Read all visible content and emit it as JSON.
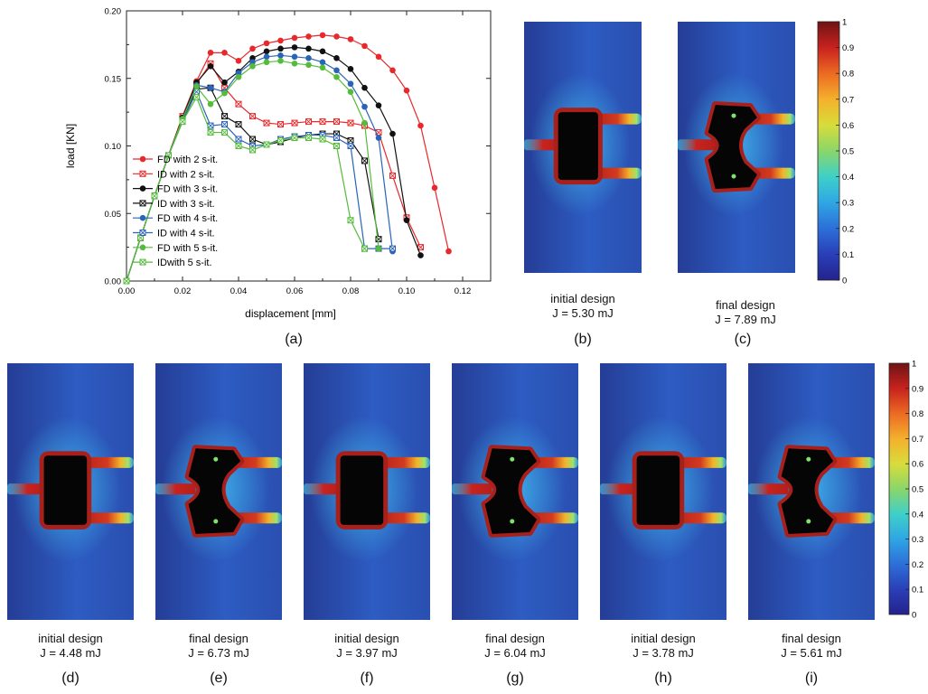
{
  "chart_data": {
    "type": "line",
    "xlabel": "displacement [mm]",
    "ylabel": "load [KN]",
    "xlim": [
      0.0,
      0.13
    ],
    "ylim": [
      0.0,
      0.2
    ],
    "xticks": [
      "0.00",
      "0.02",
      "0.04",
      "0.06",
      "0.08",
      "0.10",
      "0.12"
    ],
    "yticks": [
      "0.00",
      "0.05",
      "0.10",
      "0.15",
      "0.20"
    ],
    "legend_position": "lower-left",
    "series": [
      {
        "name": "FD with 2 s-it.",
        "color": "#e8282a",
        "marker": "dot",
        "x": [
          0,
          0.005,
          0.01,
          0.015,
          0.02,
          0.025,
          0.03,
          0.035,
          0.04,
          0.045,
          0.05,
          0.055,
          0.06,
          0.065,
          0.07,
          0.075,
          0.08,
          0.085,
          0.09,
          0.095,
          0.1,
          0.105,
          0.11,
          0.115
        ],
        "y": [
          0,
          0.032,
          0.063,
          0.093,
          0.122,
          0.148,
          0.169,
          0.169,
          0.163,
          0.172,
          0.176,
          0.178,
          0.18,
          0.181,
          0.182,
          0.181,
          0.179,
          0.174,
          0.166,
          0.156,
          0.141,
          0.115,
          0.069,
          0.022
        ]
      },
      {
        "name": "ID with 2 s-it.",
        "color": "#e8282a",
        "marker": "xbox",
        "x": [
          0,
          0.005,
          0.01,
          0.015,
          0.02,
          0.025,
          0.03,
          0.035,
          0.04,
          0.045,
          0.05,
          0.055,
          0.06,
          0.065,
          0.07,
          0.075,
          0.08,
          0.085,
          0.09,
          0.095,
          0.1,
          0.105
        ],
        "y": [
          0,
          0.032,
          0.063,
          0.093,
          0.122,
          0.146,
          0.161,
          0.143,
          0.131,
          0.122,
          0.117,
          0.116,
          0.117,
          0.118,
          0.118,
          0.118,
          0.117,
          0.115,
          0.11,
          0.078,
          0.047,
          0.025
        ]
      },
      {
        "name": "FD with 3 s-it.",
        "color": "#111111",
        "marker": "dot",
        "x": [
          0,
          0.005,
          0.01,
          0.015,
          0.02,
          0.025,
          0.03,
          0.035,
          0.04,
          0.045,
          0.05,
          0.055,
          0.06,
          0.065,
          0.07,
          0.075,
          0.08,
          0.085,
          0.09,
          0.095,
          0.1,
          0.105
        ],
        "y": [
          0,
          0.032,
          0.063,
          0.093,
          0.121,
          0.147,
          0.159,
          0.147,
          0.155,
          0.165,
          0.17,
          0.172,
          0.173,
          0.172,
          0.17,
          0.165,
          0.157,
          0.143,
          0.13,
          0.109,
          0.045,
          0.019
        ]
      },
      {
        "name": "ID with 3 s-it.",
        "color": "#111111",
        "marker": "xbox",
        "x": [
          0,
          0.005,
          0.01,
          0.015,
          0.02,
          0.025,
          0.03,
          0.035,
          0.04,
          0.045,
          0.05,
          0.055,
          0.06,
          0.065,
          0.07,
          0.075,
          0.08,
          0.085,
          0.09
        ],
        "y": [
          0,
          0.032,
          0.063,
          0.093,
          0.12,
          0.142,
          0.143,
          0.122,
          0.116,
          0.105,
          0.101,
          0.103,
          0.106,
          0.108,
          0.109,
          0.109,
          0.104,
          0.089,
          0.031
        ]
      },
      {
        "name": "FD with 4 s-it.",
        "color": "#2a64b8",
        "marker": "dot",
        "x": [
          0,
          0.005,
          0.01,
          0.015,
          0.02,
          0.025,
          0.03,
          0.035,
          0.04,
          0.045,
          0.05,
          0.055,
          0.06,
          0.065,
          0.07,
          0.075,
          0.08,
          0.085,
          0.09,
          0.095
        ],
        "y": [
          0,
          0.032,
          0.063,
          0.093,
          0.12,
          0.145,
          0.143,
          0.14,
          0.154,
          0.162,
          0.166,
          0.167,
          0.166,
          0.165,
          0.162,
          0.156,
          0.146,
          0.129,
          0.106,
          0.022
        ]
      },
      {
        "name": "ID with 4 s-it.",
        "color": "#2a64b8",
        "marker": "xbox",
        "x": [
          0,
          0.005,
          0.01,
          0.015,
          0.02,
          0.025,
          0.03,
          0.035,
          0.04,
          0.045,
          0.05,
          0.055,
          0.06,
          0.065,
          0.07,
          0.075,
          0.08,
          0.085,
          0.09,
          0.095
        ],
        "y": [
          0,
          0.032,
          0.063,
          0.093,
          0.118,
          0.14,
          0.115,
          0.116,
          0.105,
          0.1,
          0.101,
          0.105,
          0.107,
          0.108,
          0.108,
          0.106,
          0.1,
          0.024,
          0.024,
          0.024
        ]
      },
      {
        "name": "FD with 5 s-it.",
        "color": "#55bb3a",
        "marker": "dot",
        "x": [
          0,
          0.005,
          0.01,
          0.015,
          0.02,
          0.025,
          0.03,
          0.035,
          0.04,
          0.045,
          0.05,
          0.055,
          0.06,
          0.065,
          0.07,
          0.075,
          0.08,
          0.085,
          0.09
        ],
        "y": [
          0,
          0.032,
          0.063,
          0.093,
          0.12,
          0.144,
          0.131,
          0.139,
          0.151,
          0.159,
          0.162,
          0.163,
          0.161,
          0.16,
          0.158,
          0.151,
          0.14,
          0.117,
          0.024
        ]
      },
      {
        "name": "IDwith 5 s-it.",
        "color": "#55bb3a",
        "marker": "xbox",
        "x": [
          0,
          0.005,
          0.01,
          0.015,
          0.02,
          0.025,
          0.03,
          0.035,
          0.04,
          0.045,
          0.05,
          0.055,
          0.06,
          0.065,
          0.07,
          0.075,
          0.08,
          0.085
        ],
        "y": [
          0,
          0.032,
          0.063,
          0.093,
          0.118,
          0.136,
          0.11,
          0.11,
          0.1,
          0.097,
          0.101,
          0.104,
          0.106,
          0.106,
          0.105,
          0.1,
          0.045,
          0.024
        ]
      }
    ]
  },
  "labels": {
    "a": "(a)",
    "b": "(b)",
    "c": "(c)",
    "d": "(d)",
    "e": "(e)",
    "f": "(f)",
    "g": "(g)",
    "h": "(h)",
    "i": "(i)"
  },
  "captions": {
    "b": {
      "title": "initial design",
      "energy": "J = 5.30 mJ"
    },
    "c": {
      "title": "final design",
      "energy": "J = 7.89 mJ"
    },
    "d": {
      "title": "initial design",
      "energy": "J = 4.48 mJ"
    },
    "e": {
      "title": "final design",
      "energy": "J = 6.73 mJ"
    },
    "f": {
      "title": "initial design",
      "energy": "J = 3.97 mJ"
    },
    "g": {
      "title": "final design",
      "energy": "J = 6.04 mJ"
    },
    "h": {
      "title": "initial design",
      "energy": "J = 3.78 mJ"
    },
    "i": {
      "title": "final design",
      "energy": "J = 5.61 mJ"
    }
  },
  "colorbar": {
    "ticks": [
      "0",
      "0.1",
      "0.2",
      "0.3",
      "0.4",
      "0.5",
      "0.6",
      "0.7",
      "0.8",
      "0.9",
      "1"
    ],
    "colors": [
      "#23238c",
      "#2a3fb8",
      "#2c6fd8",
      "#2fa6e4",
      "#3fd0c8",
      "#8ad66a",
      "#d8dc3a",
      "#f4b02c",
      "#ec6a22",
      "#c8221e",
      "#6e1414"
    ]
  },
  "panels": {
    "b": {
      "design": "initial"
    },
    "c": {
      "design": "final"
    },
    "d": {
      "design": "initial"
    },
    "e": {
      "design": "final"
    },
    "f": {
      "design": "initial"
    },
    "g": {
      "design": "final"
    },
    "h": {
      "design": "initial"
    },
    "i": {
      "design": "final"
    }
  }
}
